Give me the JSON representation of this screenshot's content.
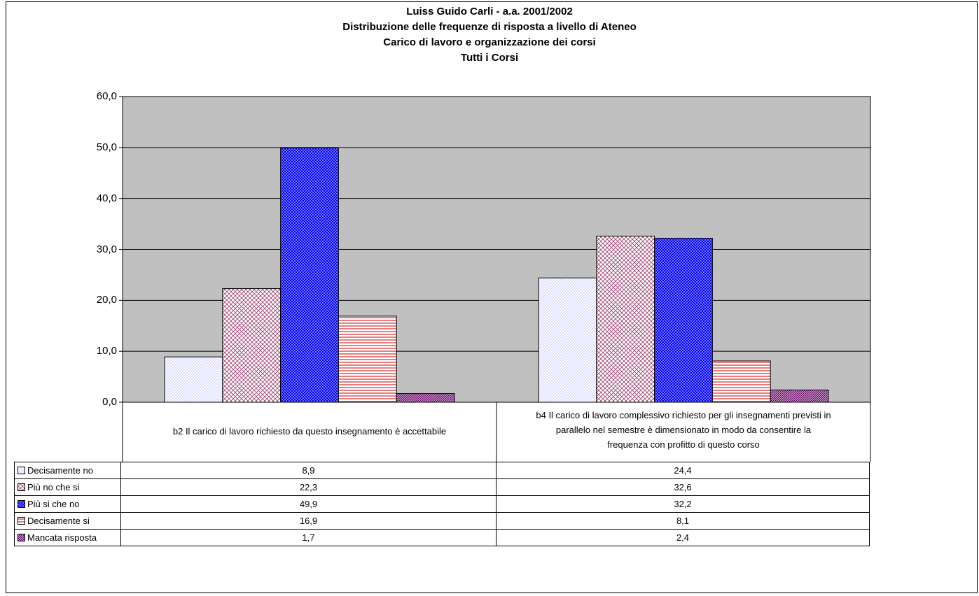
{
  "colors": {
    "plot_background": "#c0c0c0",
    "gridline": "#000000"
  },
  "chart_data": {
    "type": "bar",
    "title": [
      "Luiss Guido Carli - a.a. 2001/2002",
      "Distribuzione delle frequenze di risposta a livello di Ateneo",
      "Carico di lavoro e organizzazione dei corsi",
      "Tutti i Corsi"
    ],
    "ylim": [
      0,
      60
    ],
    "yticks": [
      "0,0",
      "10,0",
      "20,0",
      "30,0",
      "40,0",
      "50,0",
      "60,0"
    ],
    "grid": true,
    "legend": "data-table",
    "categories": [
      [
        "b2 Il carico di lavoro richiesto da questo insegnamento è accettabile"
      ],
      [
        "b4 Il carico di lavoro complessivo richiesto per gli insegnamenti previsti in",
        "parallelo nel semestre è dimensionato in modo da consentire la",
        "frequenza con profitto di questo corso"
      ]
    ],
    "series": [
      {
        "name": "Decisamente no",
        "values": [
          8.9,
          24.4
        ],
        "labels": [
          "8,9",
          "24,4"
        ],
        "color": "#ccccff",
        "pattern": "fine-diagonal"
      },
      {
        "name": "Più no che si",
        "values": [
          22.3,
          32.6
        ],
        "labels": [
          "22,3",
          "32,6"
        ],
        "color": "#993366",
        "pattern": "diamond-lattice"
      },
      {
        "name": "Più si che no",
        "values": [
          49.9,
          32.2
        ],
        "labels": [
          "49,9",
          "32,2"
        ],
        "color": "#0000ff",
        "pattern": "checker"
      },
      {
        "name": "Decisamente si",
        "values": [
          16.9,
          8.1
        ],
        "labels": [
          "16,9",
          "8,1"
        ],
        "color": "#cc0000",
        "pattern": "horizontal-lines"
      },
      {
        "name": "Mancata risposta",
        "values": [
          1.7,
          2.4
        ],
        "labels": [
          "1,7",
          "2,4"
        ],
        "color": "#660066",
        "pattern": "dense-diagonal"
      }
    ]
  }
}
